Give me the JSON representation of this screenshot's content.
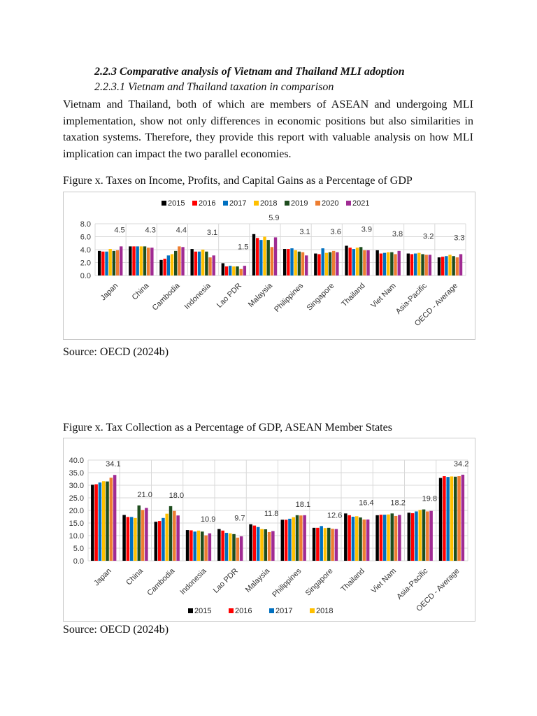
{
  "section": {
    "heading": "2.2.3 Comparative analysis of Vietnam and Thailand MLI adoption",
    "subheading": "2.2.3.1 Vietnam and Thailand taxation in comparison",
    "paragraph": "Vietnam and Thailand, both of which are members of ASEAN and undergoing MLI implementation, show not only differences in economic positions but also similarities in taxation systems. Therefore, they provide this report with valuable analysis on how MLI implication can impact the two parallel economies."
  },
  "figures": [
    {
      "caption": "Figure x. Taxes on Income, Profits, and Capital Gains as a Percentage of GDP",
      "source": "Source: OECD (2024b)"
    },
    {
      "caption": "Figure x. Tax Collection as a Percentage of GDP, ASEAN Member States",
      "source": "Source: OECD (2024b)"
    }
  ],
  "chart_data": [
    {
      "type": "bar",
      "title": "",
      "legend_placement": "top",
      "grid": true,
      "ylim": [
        0,
        8
      ],
      "yticks": [
        "0.0",
        "2.0",
        "4.0",
        "6.0",
        "8.0"
      ],
      "categories": [
        "Japan",
        "China",
        "Cambodia",
        "Indonesia",
        "Lao PDR",
        "Malaysia",
        "Philippines",
        "Singapore",
        "Thailand",
        "Viet Nam",
        "Asia-Pacific",
        "OECD - Average"
      ],
      "series": [
        {
          "name": "2015",
          "color": "#000000",
          "values": [
            3.8,
            4.5,
            2.4,
            4.1,
            1.9,
            6.4,
            4.1,
            3.4,
            4.6,
            3.9,
            3.4,
            2.8
          ]
        },
        {
          "name": "2016",
          "color": "#ff0000",
          "values": [
            3.7,
            4.5,
            2.6,
            3.7,
            1.4,
            5.8,
            4.1,
            3.3,
            4.3,
            3.4,
            3.3,
            2.9
          ]
        },
        {
          "name": "2017",
          "color": "#0070c0",
          "values": [
            3.7,
            4.5,
            3.1,
            3.7,
            1.5,
            5.5,
            4.2,
            4.2,
            4.1,
            3.5,
            3.4,
            3.0
          ]
        },
        {
          "name": "2018",
          "color": "#ffc000",
          "values": [
            4.1,
            4.5,
            3.3,
            4.0,
            1.4,
            6.0,
            3.9,
            3.5,
            4.3,
            3.6,
            3.5,
            3.2
          ]
        },
        {
          "name": "2019",
          "color": "#1e4d1e",
          "values": [
            3.8,
            4.5,
            3.8,
            3.7,
            1.4,
            5.5,
            3.7,
            3.6,
            4.4,
            3.6,
            3.3,
            3.0
          ]
        },
        {
          "name": "2020",
          "color": "#ed7d31",
          "values": [
            3.9,
            4.3,
            4.5,
            2.8,
            1.0,
            4.4,
            3.6,
            3.8,
            3.9,
            3.3,
            3.2,
            2.8
          ]
        },
        {
          "name": "2021",
          "color": "#a02b93",
          "values": [
            4.5,
            4.3,
            4.4,
            3.1,
            1.5,
            5.9,
            3.1,
            3.6,
            3.9,
            3.8,
            3.2,
            3.3
          ]
        }
      ],
      "data_labels": [
        "4.5",
        "4.3",
        "4.4",
        "3.1",
        "1.5",
        "5.9",
        "3.1",
        "3.6",
        "3.9",
        "3.8",
        "3.2",
        "3.3"
      ]
    },
    {
      "type": "bar",
      "title": "",
      "legend_placement": "bottom",
      "grid": true,
      "ylim": [
        0,
        40
      ],
      "yticks": [
        "0.0",
        "5.0",
        "10.0",
        "15.0",
        "20.0",
        "25.0",
        "30.0",
        "35.0",
        "40.0"
      ],
      "categories": [
        "Japan",
        "China",
        "Cambodia",
        "Indonesia",
        "Lao PDR",
        "Malaysia",
        "Philippines",
        "Singapore",
        "Thailand",
        "Viet Nam",
        "Asia-Pacific",
        "OECD - Average"
      ],
      "series": [
        {
          "name": "2015",
          "color": "#000000",
          "values": [
            30.2,
            18.2,
            15.5,
            12.2,
            12.6,
            14.5,
            16.3,
            13.1,
            18.8,
            18.1,
            19.1,
            32.9
          ]
        },
        {
          "name": "2016",
          "color": "#ff0000",
          "values": [
            30.4,
            17.4,
            15.8,
            12.1,
            12.0,
            14.0,
            16.3,
            13.1,
            18.1,
            18.3,
            18.9,
            33.6
          ]
        },
        {
          "name": "2017",
          "color": "#0070c0",
          "values": [
            31.1,
            17.4,
            17.0,
            11.6,
            11.1,
            13.4,
            16.7,
            13.8,
            17.5,
            18.3,
            19.6,
            33.3
          ]
        },
        {
          "name": "2018",
          "color": "#ffc000",
          "values": [
            31.6,
            17.0,
            18.7,
            12.0,
            10.9,
            12.6,
            17.3,
            13.0,
            17.7,
            18.4,
            20.2,
            33.5
          ]
        },
        {
          "color": "#1e4d1e",
          "values": [
            31.5,
            22.0,
            21.7,
            11.6,
            10.6,
            12.5,
            18.1,
            13.1,
            17.2,
            18.8,
            20.4,
            33.4
          ]
        },
        {
          "color": "#ed7d31",
          "values": [
            33.0,
            20.2,
            19.8,
            10.1,
            9.2,
            11.4,
            18.0,
            12.7,
            16.4,
            17.8,
            19.6,
            33.6
          ]
        },
        {
          "color": "#a02b93",
          "values": [
            34.1,
            21.0,
            18.0,
            10.9,
            9.7,
            11.8,
            18.1,
            12.6,
            16.4,
            18.2,
            19.8,
            34.2
          ]
        }
      ],
      "data_labels": [
        "34.1",
        "21.0",
        "18.0",
        "10.9",
        "9.7",
        "11.8",
        "18.1",
        "12.6",
        "16.4",
        "18.2",
        "19.8",
        "34.2"
      ]
    }
  ]
}
